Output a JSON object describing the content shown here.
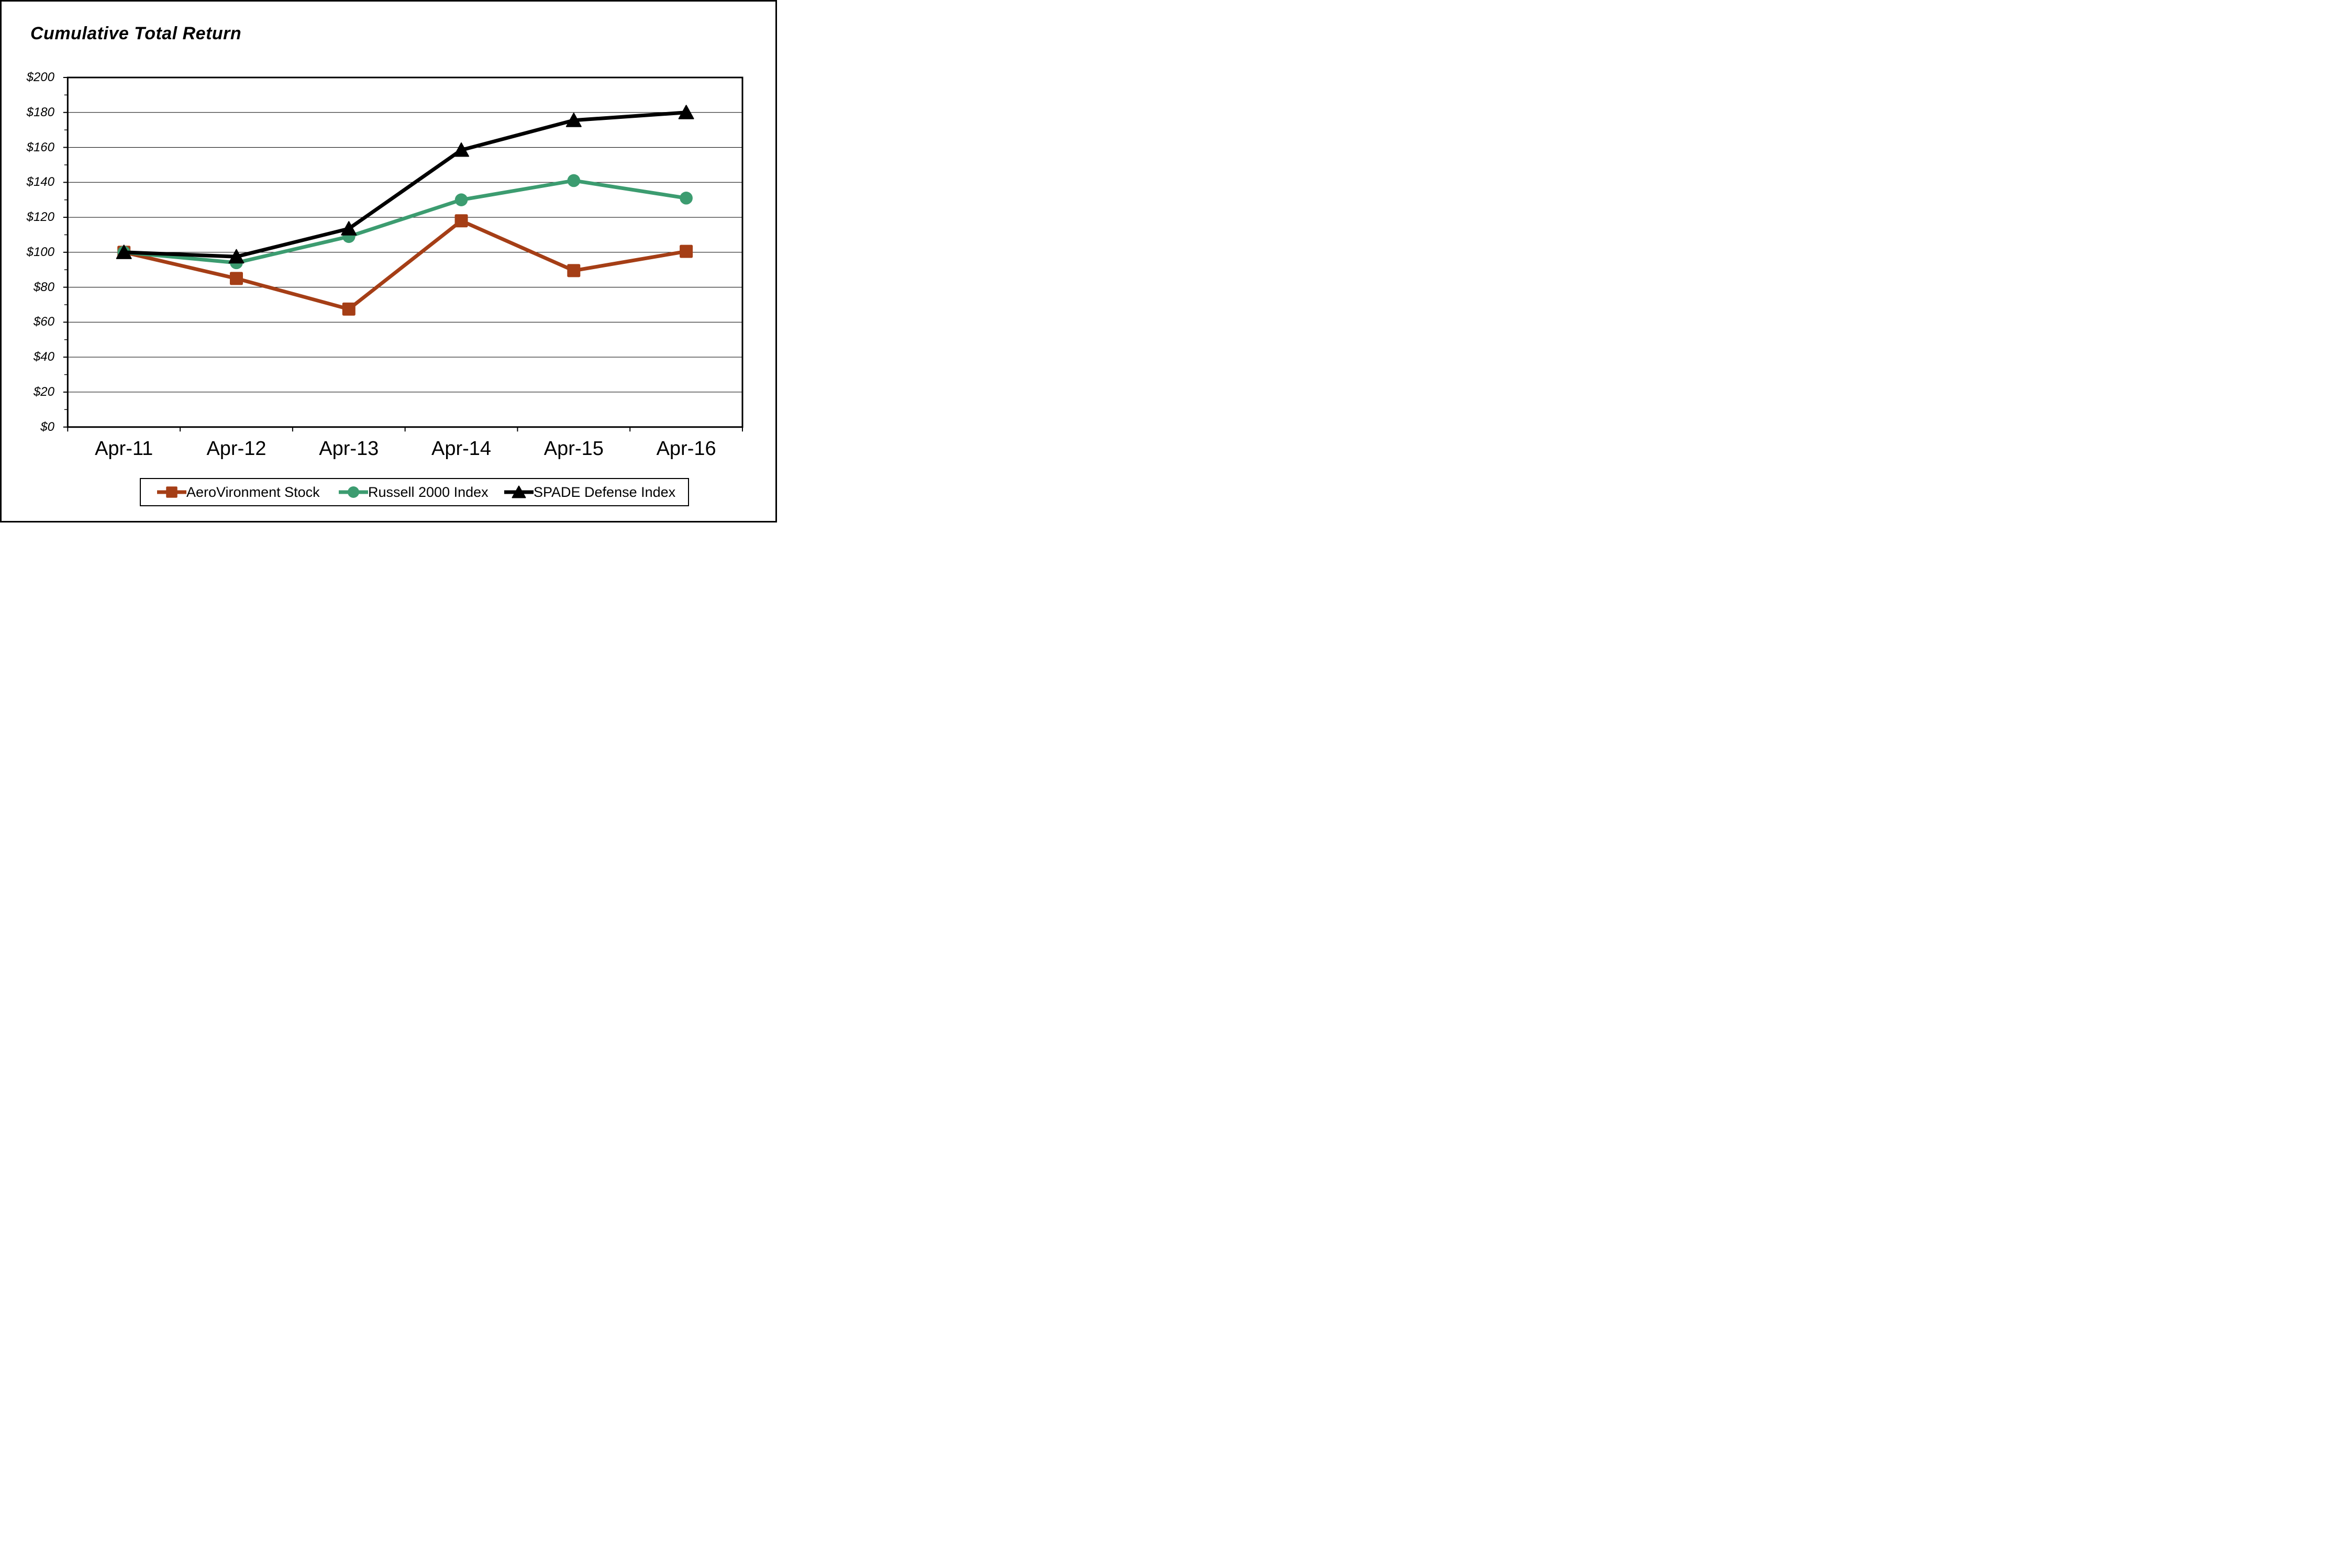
{
  "title": "Cumulative Total Return",
  "y_axis": {
    "tick_labels": [
      "$200",
      "$180",
      "$160",
      "$140",
      "$120",
      "$100",
      "$80",
      "$60",
      "$40",
      "$20",
      "$0"
    ]
  },
  "x_axis": {
    "tick_labels": [
      "Apr-11",
      "Apr-12",
      "Apr-13",
      "Apr-14",
      "Apr-15",
      "Apr-16"
    ]
  },
  "legend": {
    "items": [
      {
        "label": "AeroVironment Stock",
        "color": "#A53E16",
        "marker": "square"
      },
      {
        "label": "Russell 2000 Index",
        "color": "#3C9C70",
        "marker": "circle"
      },
      {
        "label": "SPADE Defense Index",
        "color": "#000000",
        "marker": "triangle"
      }
    ]
  },
  "chart_data": {
    "type": "line",
    "title": "Cumulative Total Return",
    "categories": [
      "Apr-11",
      "Apr-12",
      "Apr-13",
      "Apr-14",
      "Apr-15",
      "Apr-16"
    ],
    "series": [
      {
        "name": "AeroVironment Stock",
        "color": "#A53E16",
        "marker": "square",
        "values": [
          100,
          85,
          67.5,
          118,
          89.5,
          100.5
        ]
      },
      {
        "name": "Russell 2000 Index",
        "color": "#3C9C70",
        "marker": "circle",
        "values": [
          100,
          94,
          109,
          130,
          141,
          131
        ]
      },
      {
        "name": "SPADE Defense Index",
        "color": "#000000",
        "marker": "triangle",
        "values": [
          100,
          97.5,
          113.5,
          158.5,
          175.5,
          180
        ]
      }
    ],
    "ylim": [
      0,
      200
    ],
    "y_tick_step": 20,
    "y_minor_tick_step": 10,
    "y_tick_prefix": "$",
    "grid": "horizontal",
    "legend_position": "bottom",
    "colors": {
      "frame": "#000000",
      "gridline": "#000000",
      "background": "#FFFFFF"
    }
  }
}
